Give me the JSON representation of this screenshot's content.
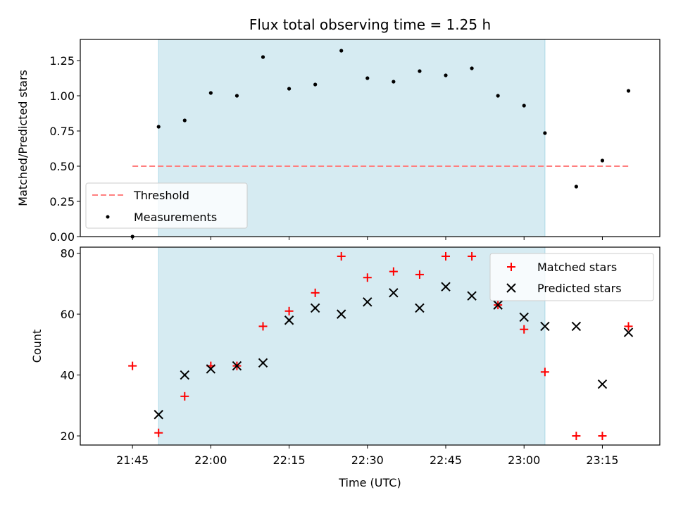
{
  "chart_data": [
    {
      "type": "scatter",
      "title": "Flux total observing time = 1.25 h",
      "ylabel": "Matched/Predicted stars",
      "ylim": [
        0,
        1.4
      ],
      "yticks": [
        "0.00",
        "0.25",
        "0.50",
        "0.75",
        "1.00",
        "1.25"
      ],
      "ytick_values": [
        0,
        0.25,
        0.5,
        0.75,
        1.0,
        1.25
      ],
      "xlim": [
        "21:35",
        "23:26"
      ],
      "shaded_span": [
        "21:50",
        "23:04"
      ],
      "shade_color": "#add8e6",
      "threshold": {
        "name": "Threshold",
        "value": 0.5,
        "from": "21:45",
        "to": "23:20",
        "color": "#ff7f7f"
      },
      "series": [
        {
          "name": "Measurements",
          "color": "#000000",
          "x": [
            "21:45",
            "21:50",
            "21:55",
            "22:00",
            "22:05",
            "22:10",
            "22:15",
            "22:20",
            "22:25",
            "22:30",
            "22:35",
            "22:40",
            "22:45",
            "22:50",
            "22:55",
            "23:00",
            "23:04",
            "23:10",
            "23:15",
            "23:20"
          ],
          "y": [
            0.0,
            0.78,
            0.825,
            1.02,
            1.0,
            1.275,
            1.05,
            1.08,
            1.32,
            1.125,
            1.1,
            1.175,
            1.145,
            1.195,
            1.0,
            0.93,
            0.735,
            0.355,
            0.54,
            1.035
          ]
        }
      ],
      "legend": {
        "position": "lower-left",
        "entries": [
          "Threshold",
          "Measurements"
        ]
      }
    },
    {
      "type": "scatter",
      "xlabel": "Time (UTC)",
      "ylabel": "Count",
      "ylim": [
        17,
        82
      ],
      "yticks": [
        "20",
        "40",
        "60",
        "80"
      ],
      "ytick_values": [
        20,
        40,
        60,
        80
      ],
      "xlim": [
        "21:35",
        "23:26"
      ],
      "xticks": [
        "21:45",
        "22:00",
        "22:15",
        "22:30",
        "22:45",
        "23:00",
        "23:15"
      ],
      "shaded_span": [
        "21:50",
        "23:04"
      ],
      "shade_color": "#add8e6",
      "series": [
        {
          "name": "Matched stars",
          "marker": "+",
          "color": "#ff0000",
          "x": [
            "21:45",
            "21:50",
            "21:55",
            "22:00",
            "22:05",
            "22:10",
            "22:15",
            "22:20",
            "22:25",
            "22:30",
            "22:35",
            "22:40",
            "22:45",
            "22:50",
            "22:55",
            "23:00",
            "23:04",
            "23:10",
            "23:15",
            "23:20"
          ],
          "y": [
            43,
            21,
            33,
            43,
            43,
            56,
            61,
            67,
            79,
            72,
            74,
            73,
            79,
            79,
            63,
            55,
            41,
            20,
            20,
            56
          ]
        },
        {
          "name": "Predicted stars",
          "marker": "x",
          "color": "#000000",
          "x": [
            "21:50",
            "21:55",
            "22:00",
            "22:05",
            "22:10",
            "22:15",
            "22:20",
            "22:25",
            "22:30",
            "22:35",
            "22:40",
            "22:45",
            "22:50",
            "22:55",
            "23:00",
            "23:04",
            "23:10",
            "23:15",
            "23:20"
          ],
          "y": [
            27,
            40,
            42,
            43,
            44,
            58,
            62,
            60,
            64,
            67,
            62,
            69,
            66,
            63,
            59,
            56,
            56,
            37,
            54
          ]
        }
      ],
      "legend": {
        "position": "upper-right",
        "entries": [
          "Matched stars",
          "Predicted stars"
        ]
      }
    }
  ]
}
